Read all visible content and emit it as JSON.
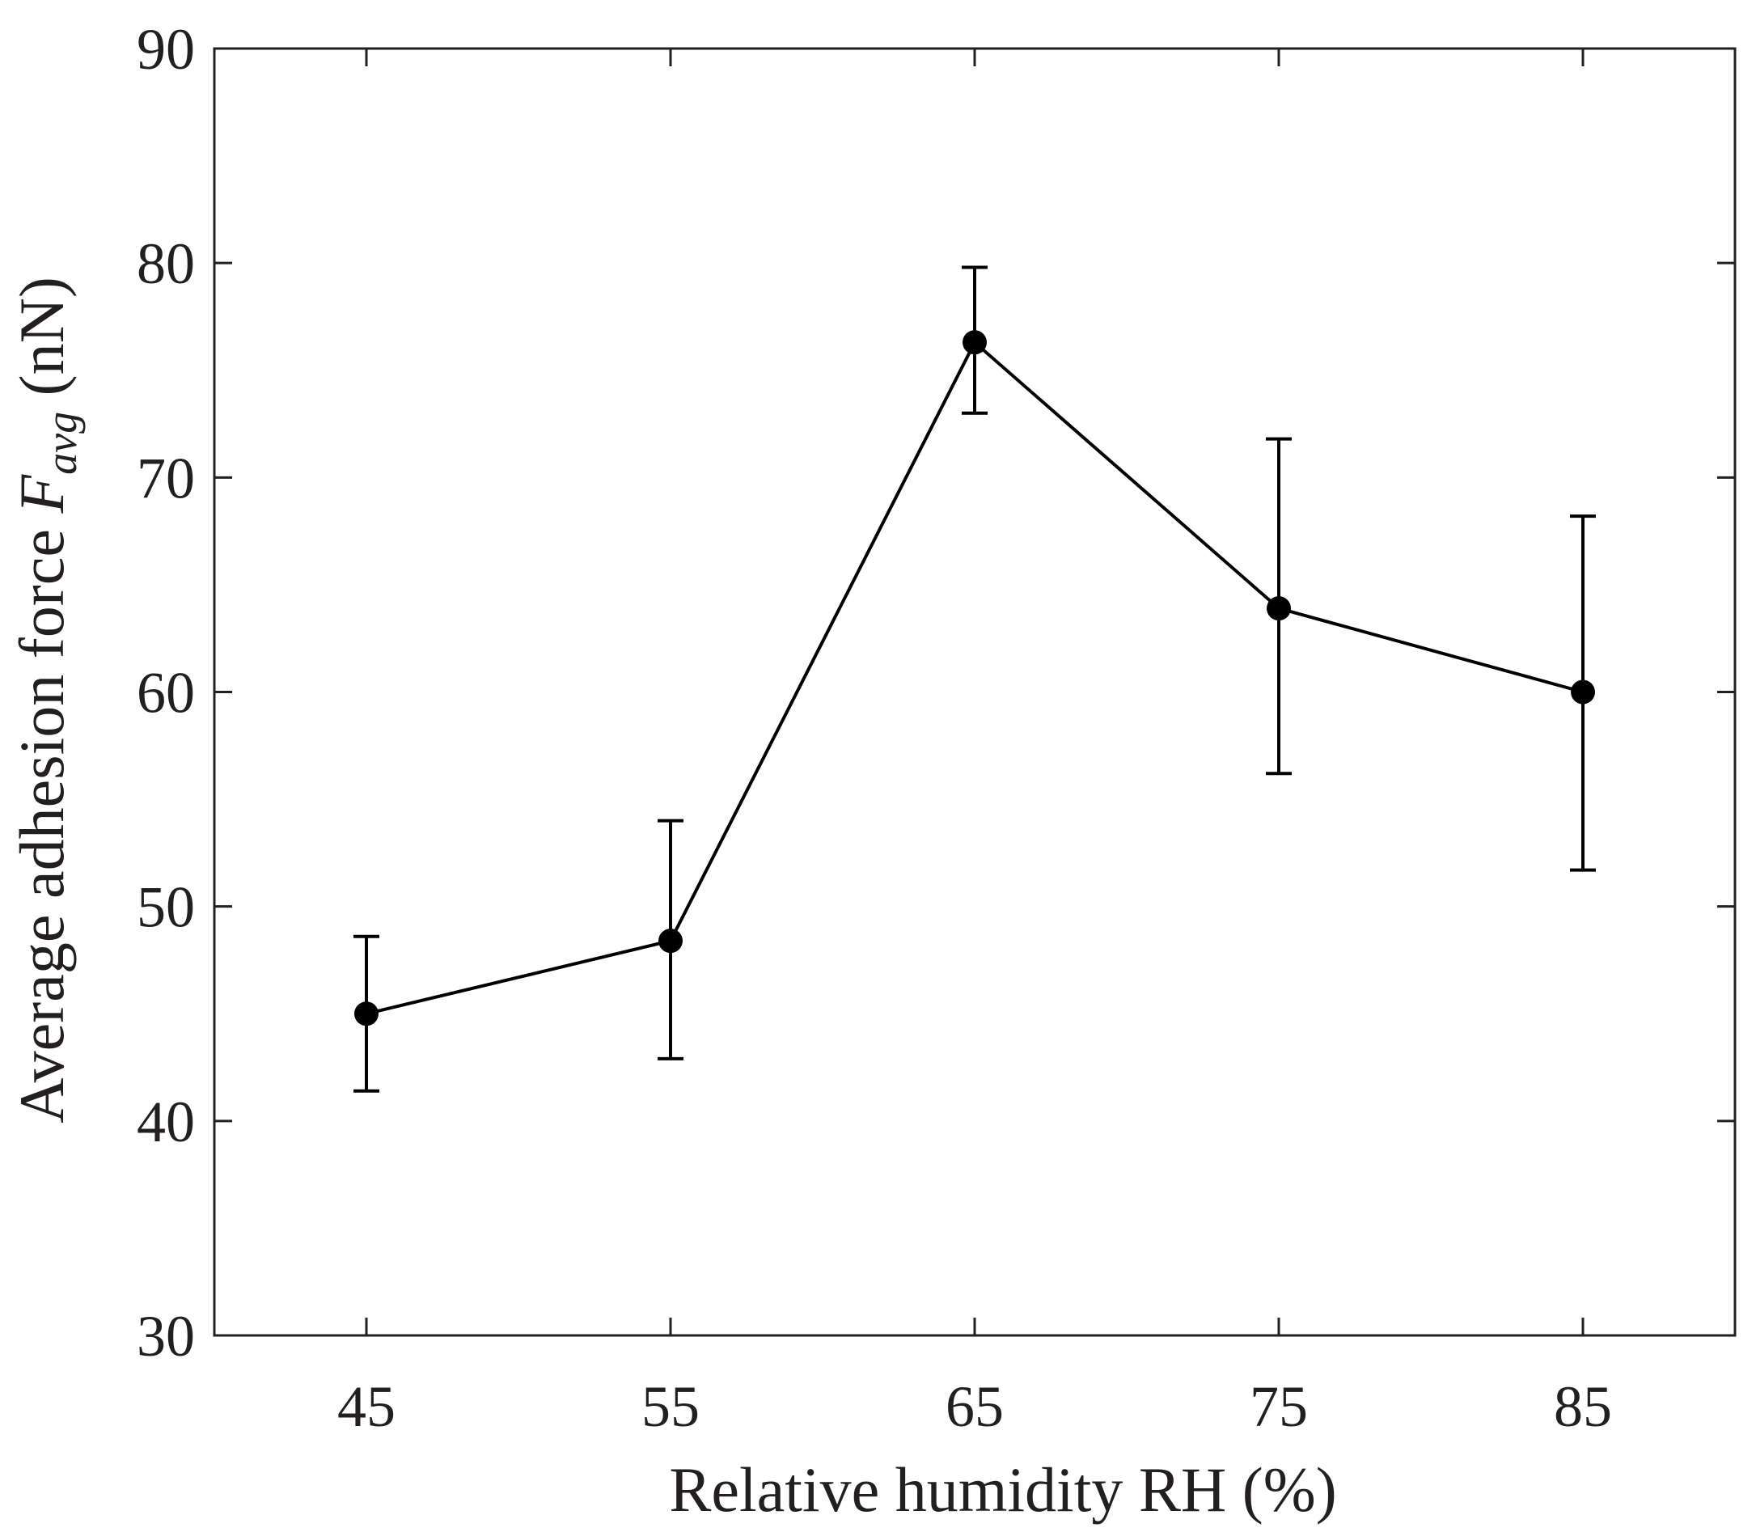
{
  "chart_data": {
    "type": "line",
    "title": "",
    "xlabel": "Relative humidity RH (%)",
    "ylabel": {
      "prefix": "Average adhesion force ",
      "symbol": "F",
      "subscript": "avg",
      "suffix": " (nN)"
    },
    "xlim": [
      40,
      90
    ],
    "ylim": [
      30,
      90
    ],
    "x_ticks": [
      45,
      55,
      65,
      75,
      85
    ],
    "y_ticks": [
      30,
      40,
      50,
      60,
      70,
      80,
      90
    ],
    "grid": false,
    "legend": "none",
    "colors": {
      "line": "#000000",
      "axes": "#231f20",
      "text": "#231f20"
    },
    "series": [
      {
        "x": [
          45,
          55,
          65,
          75,
          85
        ],
        "y": [
          45.0,
          48.4,
          76.3,
          63.9,
          60.0
        ],
        "error_low": [
          41.4,
          42.9,
          73.0,
          56.2,
          51.7
        ],
        "error_high": [
          48.6,
          54.0,
          79.8,
          71.8,
          68.2
        ]
      }
    ]
  }
}
